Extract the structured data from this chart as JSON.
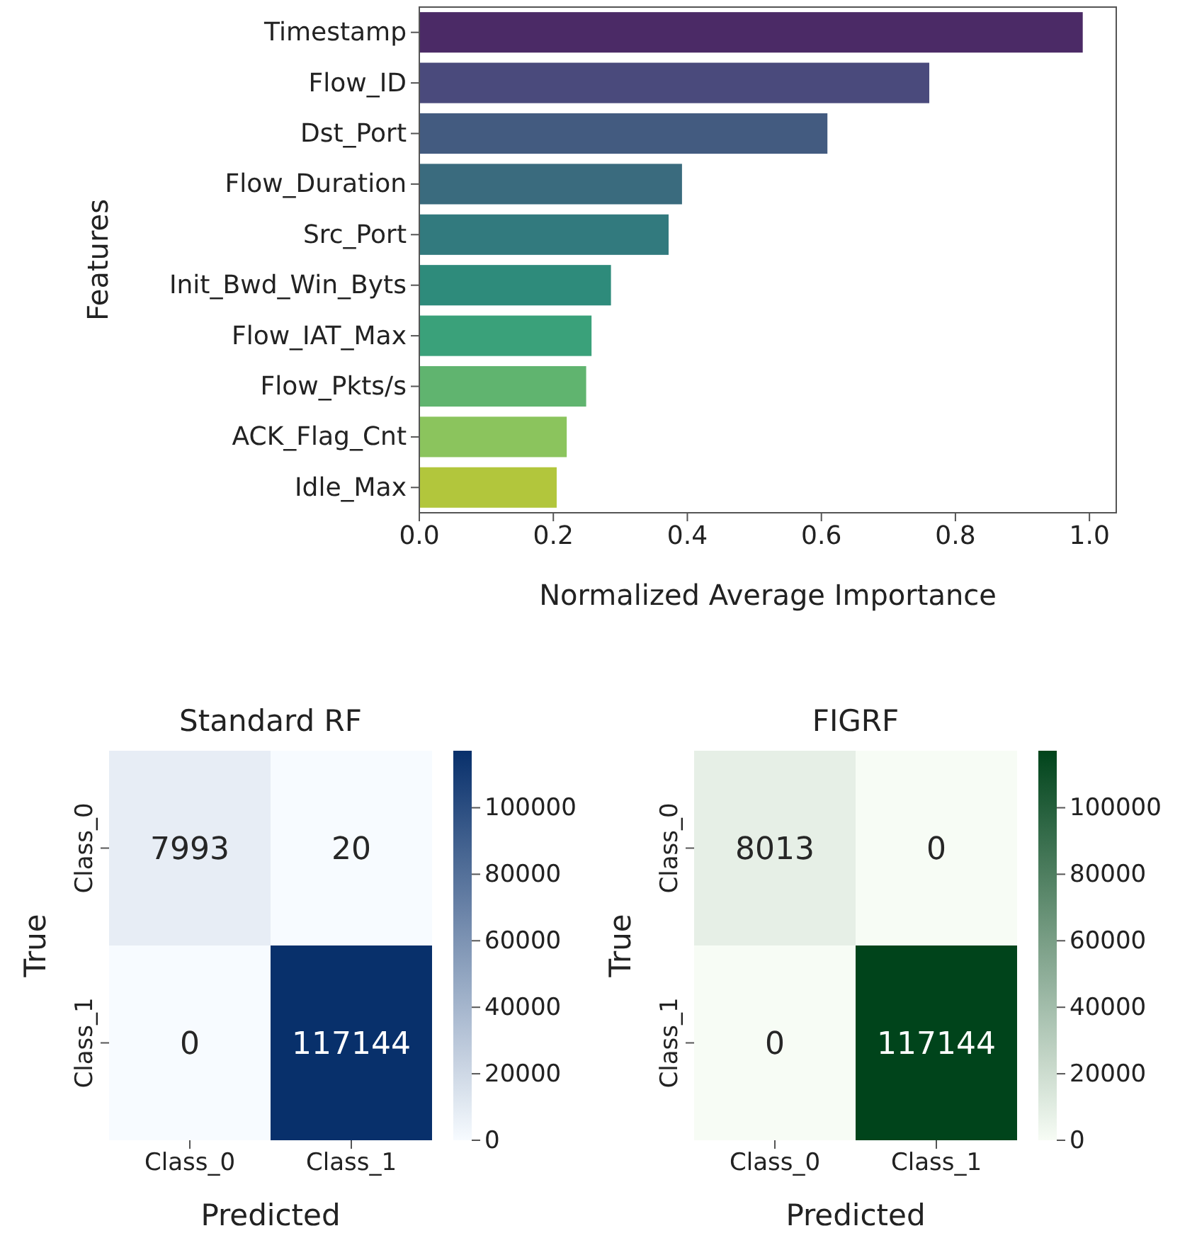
{
  "chart_data": [
    {
      "type": "bar",
      "orientation": "horizontal",
      "xlabel": "Normalized Average Importance",
      "ylabel": "Features",
      "categories": [
        "Timestamp",
        "Flow_ID",
        "Dst_Port",
        "Flow_Duration",
        "Src_Port",
        "Init_Bwd_Win_Byts",
        "Flow_IAT_Max",
        "Flow_Pkts/s",
        "ACK_Flag_Cnt",
        "Idle_Max"
      ],
      "values": [
        0.99,
        0.761,
        0.609,
        0.392,
        0.372,
        0.286,
        0.257,
        0.249,
        0.22,
        0.205
      ],
      "colors": [
        "#4b2a66",
        "#4a4a7c",
        "#435b80",
        "#3a6b7e",
        "#327a7e",
        "#2e8b7b",
        "#3aa17a",
        "#60b46f",
        "#8bc45d",
        "#b2c63c"
      ],
      "xlim": [
        0,
        1.04
      ],
      "xticks": [
        {
          "value": 0,
          "label": "0.0"
        },
        {
          "value": 0.2,
          "label": "0.2"
        },
        {
          "value": 0.4,
          "label": "0.4"
        },
        {
          "value": 0.6,
          "label": "0.6"
        },
        {
          "value": 0.8,
          "label": "0.8"
        },
        {
          "value": 1,
          "label": "1.0"
        }
      ]
    },
    {
      "type": "heatmap",
      "title": "Standard RF",
      "xlabel": "Predicted",
      "ylabel": "True",
      "categories": [
        "Class_0",
        "Class_1"
      ],
      "y_categories": [
        "Class_0",
        "Class_1"
      ],
      "cells": [
        [
          7993,
          20
        ],
        [
          0,
          117144
        ]
      ],
      "data_labels": true,
      "colors": [
        "#f7fbff",
        "#08306b"
      ],
      "clim": [
        0,
        117144
      ],
      "cticks": [
        0,
        20000,
        40000,
        60000,
        80000,
        100000
      ]
    },
    {
      "type": "heatmap",
      "title": "FIGRF",
      "xlabel": "Predicted",
      "ylabel": "True",
      "categories": [
        "Class_0",
        "Class_1"
      ],
      "y_categories": [
        "Class_0",
        "Class_1"
      ],
      "cells": [
        [
          8013,
          0
        ],
        [
          0,
          117144
        ]
      ],
      "data_labels": true,
      "colors": [
        "#f7fcf5",
        "#00441b"
      ],
      "clim": [
        0,
        117144
      ],
      "cticks": [
        0,
        20000,
        40000,
        60000,
        80000,
        100000
      ]
    }
  ]
}
